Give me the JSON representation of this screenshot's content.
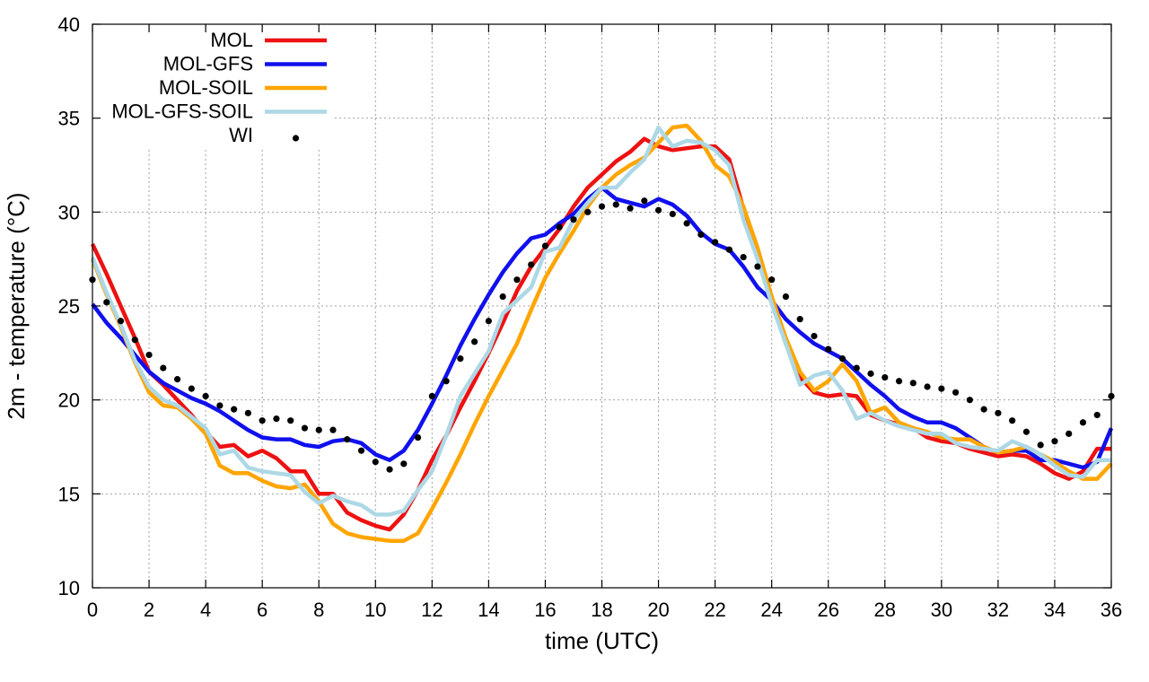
{
  "chart_data": {
    "type": "line",
    "xlabel": "time (UTC)",
    "ylabel": "2m - temperature (°C)",
    "xlim": [
      0,
      36
    ],
    "ylim": [
      10,
      40
    ],
    "xticks": [
      0,
      2,
      4,
      6,
      8,
      10,
      12,
      14,
      16,
      18,
      20,
      22,
      24,
      26,
      28,
      30,
      32,
      34,
      36
    ],
    "yticks": [
      10,
      15,
      20,
      25,
      30,
      35,
      40
    ],
    "grid": true,
    "legend_position": "top-left",
    "x": [
      0,
      0.5,
      1,
      1.5,
      2,
      2.5,
      3,
      3.5,
      4,
      4.5,
      5,
      5.5,
      6,
      6.5,
      7,
      7.5,
      8,
      8.5,
      9,
      9.5,
      10,
      10.5,
      11,
      11.5,
      12,
      12.5,
      13,
      13.5,
      14,
      14.5,
      15,
      15.5,
      16,
      16.5,
      17,
      17.5,
      18,
      18.5,
      19,
      19.5,
      20,
      20.5,
      21,
      21.5,
      22,
      22.5,
      23,
      23.5,
      24,
      24.5,
      25,
      25.5,
      26,
      26.5,
      27,
      27.5,
      28,
      28.5,
      29,
      29.5,
      30,
      30.5,
      31,
      31.5,
      32,
      32.5,
      33,
      33.5,
      34,
      34.5,
      35,
      35.5,
      36
    ],
    "series": [
      {
        "name": "MOL",
        "color": "#ee1111",
        "style": "line",
        "values": [
          28.3,
          26.7,
          25,
          23.3,
          21.5,
          20.8,
          20,
          19.2,
          18.3,
          17.5,
          17.6,
          17,
          17.3,
          16.9,
          16.2,
          16.2,
          15,
          15,
          14,
          13.6,
          13.3,
          13.1,
          13.9,
          15.2,
          16.8,
          18.1,
          19.6,
          21,
          22.5,
          24.1,
          25.8,
          27.1,
          28.1,
          29.1,
          30.3,
          31.3,
          32,
          32.7,
          33.2,
          33.9,
          33.5,
          33.3,
          33.4,
          33.5,
          33.5,
          32.8,
          30.2,
          27.8,
          25.3,
          23,
          21.2,
          20.4,
          20.2,
          20.3,
          20.2,
          19.2,
          18.9,
          18.7,
          18.5,
          18,
          17.8,
          17.7,
          17.4,
          17.2,
          17,
          17.1,
          17,
          16.6,
          16.1,
          15.8,
          16.2,
          17.4,
          17.4
        ]
      },
      {
        "name": "MOL-GFS",
        "color": "#1010ee",
        "style": "line",
        "values": [
          25.1,
          24.1,
          23.3,
          22.4,
          21.5,
          20.9,
          20.5,
          20.1,
          19.8,
          19.4,
          18.9,
          18.4,
          18,
          17.9,
          17.9,
          17.6,
          17.5,
          17.8,
          17.9,
          17.7,
          17.1,
          16.8,
          17.3,
          18.4,
          19.8,
          21.3,
          22.9,
          24.3,
          25.6,
          26.8,
          27.8,
          28.6,
          28.8,
          29.4,
          29.9,
          30.7,
          31.3,
          30.7,
          30.5,
          30.3,
          30.7,
          30.4,
          29.8,
          28.9,
          28.3,
          28,
          27.1,
          26,
          25.3,
          24.3,
          23.6,
          23,
          22.6,
          22.2,
          21.5,
          20.8,
          20.2,
          19.5,
          19.1,
          18.8,
          18.8,
          18.5,
          18,
          17.5,
          17.2,
          17.3,
          17.3,
          16.8,
          16.8,
          16.6,
          16.4,
          16.7,
          18.5
        ]
      },
      {
        "name": "MOL-SOIL",
        "color": "#ffa500",
        "style": "line",
        "values": [
          27.5,
          25.6,
          23.9,
          22,
          20.4,
          19.7,
          19.6,
          19,
          18.2,
          16.5,
          16.1,
          16.1,
          15.7,
          15.4,
          15.3,
          15.5,
          14.6,
          13.4,
          12.9,
          12.7,
          12.6,
          12.5,
          12.5,
          12.9,
          14.2,
          15.6,
          17.1,
          18.7,
          20.2,
          21.6,
          23,
          24.8,
          26.5,
          27.8,
          29,
          30.3,
          31.3,
          32,
          32.5,
          32.9,
          33.7,
          34.5,
          34.6,
          33.8,
          32.5,
          31.9,
          30.3,
          28.1,
          25.5,
          23.3,
          21.5,
          20.5,
          21,
          21.9,
          21,
          19.3,
          19.6,
          18.8,
          18.5,
          18.3,
          18,
          17.9,
          17.9,
          17.5,
          17.2,
          17.3,
          17.5,
          17.1,
          16.7,
          16.2,
          15.8,
          15.8,
          16.6
        ]
      },
      {
        "name": "MOL-GFS-SOIL",
        "color": "#add8e6",
        "style": "line",
        "values": [
          27.6,
          25.7,
          24,
          22.1,
          20.7,
          20,
          19.7,
          19.1,
          18.5,
          17.1,
          17.3,
          16.4,
          16.2,
          16.1,
          16,
          15.1,
          14.5,
          14.9,
          14.6,
          14.4,
          13.9,
          13.9,
          14.1,
          15.2,
          16.2,
          18.1,
          20.2,
          21.4,
          22.6,
          24.6,
          25.3,
          26,
          27.9,
          28.1,
          29.6,
          30.5,
          31.3,
          31.3,
          32.1,
          32.8,
          34.5,
          33.5,
          33.8,
          33.7,
          33.3,
          32.5,
          29.6,
          27.5,
          25.1,
          23,
          20.8,
          21.3,
          21.5,
          20.5,
          19,
          19.3,
          18.9,
          18.6,
          18.4,
          18.2,
          18.2,
          17.7,
          17.5,
          17.4,
          17.3,
          17.8,
          17.5,
          17.1,
          16.5,
          16,
          15.9,
          16.8,
          16.8
        ]
      },
      {
        "name": "WI",
        "color": "#000000",
        "style": "points",
        "values": [
          26.4,
          25.2,
          24.2,
          23.2,
          22.4,
          21.7,
          21.1,
          20.6,
          20.2,
          19.7,
          19.5,
          19.3,
          18.9,
          19,
          18.9,
          18.5,
          18.4,
          18.4,
          17.9,
          17.3,
          16.7,
          16.3,
          16.6,
          18,
          20.2,
          21,
          22.2,
          23.1,
          24.2,
          25.5,
          26.4,
          27.2,
          28.2,
          29.2,
          29.6,
          30,
          30.3,
          30.4,
          30.2,
          30.6,
          30.1,
          29.9,
          29.4,
          28.8,
          28.4,
          28,
          27.6,
          27.1,
          26.4,
          25.5,
          24.3,
          23.4,
          22.7,
          22.2,
          21.7,
          21.4,
          21.2,
          21,
          20.9,
          20.7,
          20.6,
          20.4,
          20,
          19.5,
          19.3,
          18.9,
          18.3,
          17.6,
          17.8,
          18.2,
          18.8,
          19.2,
          20.2
        ]
      }
    ]
  }
}
